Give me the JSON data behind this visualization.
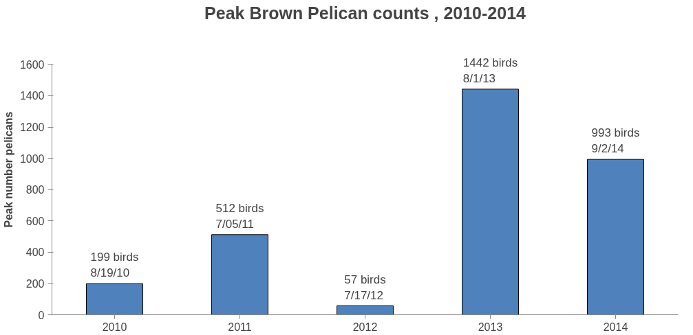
{
  "chart_data": {
    "type": "bar",
    "title": "Peak Brown Pelican counts , 2010-2014",
    "ylabel": "Peak number pelicans",
    "categories": [
      "2010",
      "2011",
      "2012",
      "2013",
      "2014"
    ],
    "values": [
      199,
      512,
      57,
      1442,
      993
    ],
    "color": "#4f81bd",
    "value_labels": [
      "199 birds\n8/19/10",
      "512 birds\n7/05/11",
      "57 birds\n7/17/12",
      "1442 birds\n8/1/13",
      "993 birds\n9/2/14"
    ],
    "ylim": [
      0,
      1600
    ],
    "yticks": [
      0,
      200,
      400,
      600,
      800,
      1000,
      1200,
      1400,
      1600
    ],
    "grid": false
  }
}
